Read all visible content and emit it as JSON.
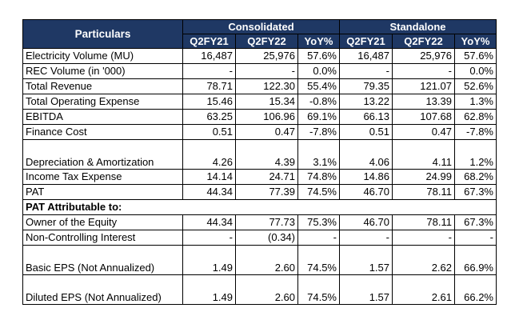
{
  "header": {
    "particulars": "Particulars",
    "groups": [
      "Consolidated",
      "Standalone"
    ],
    "periods": [
      "Q2FY21",
      "Q2FY22",
      "YoY%",
      "Q2FY21",
      "Q2FY22",
      "YoY%"
    ]
  },
  "rows": [
    {
      "label": "Electricity Volume (MU)",
      "values": [
        "16,487",
        "25,976",
        "57.6%",
        "16,487",
        "25,976",
        "57.6%"
      ]
    },
    {
      "label": "REC Volume (in '000)",
      "values": [
        "-",
        "-",
        "0.0%",
        "-",
        "-",
        "0.0%"
      ]
    },
    {
      "label": "Total Revenue",
      "values": [
        "78.71",
        "122.30",
        "55.4%",
        "79.35",
        "121.07",
        "52.6%"
      ]
    },
    {
      "label": "Total Operating Expense",
      "values": [
        "15.46",
        "15.34",
        "-0.8%",
        "13.22",
        "13.39",
        "1.3%"
      ]
    },
    {
      "label": "EBITDA",
      "values": [
        "63.25",
        "106.96",
        "69.1%",
        "66.13",
        "107.68",
        "62.8%"
      ]
    },
    {
      "label": "Finance Cost",
      "values": [
        "0.51",
        "0.47",
        "-7.8%",
        "0.51",
        "0.47",
        "-7.8%"
      ]
    },
    {
      "label": "Depreciation & Amortization",
      "values": [
        "4.26",
        "4.39",
        "3.1%",
        "4.06",
        "4.11",
        "1.2%"
      ]
    },
    {
      "label": "Income Tax Expense",
      "values": [
        "14.14",
        "24.71",
        "74.8%",
        "14.86",
        "24.99",
        "68.2%"
      ]
    },
    {
      "label": "PAT",
      "values": [
        "44.34",
        "77.39",
        "74.5%",
        "46.70",
        "78.11",
        "67.3%"
      ]
    },
    {
      "label": "PAT Attributable to:",
      "values": [
        "",
        "",
        "",
        "",
        "",
        ""
      ]
    },
    {
      "label": "Owner of the Equity",
      "values": [
        "44.34",
        "77.73",
        "75.3%",
        "46.70",
        "78.11",
        "67.3%"
      ]
    },
    {
      "label": "Non-Controlling Interest",
      "values": [
        "-",
        "(0.34)",
        "-",
        "-",
        "-",
        "-"
      ]
    },
    {
      "label": "Basic EPS (Not Annualized)",
      "values": [
        "1.49",
        "2.60",
        "74.5%",
        "1.57",
        "2.62",
        "66.9%"
      ]
    },
    {
      "label": "Diluted EPS (Not Annualized)",
      "values": [
        "1.49",
        "2.60",
        "74.5%",
        "1.57",
        "2.61",
        "66.2%"
      ]
    }
  ]
}
